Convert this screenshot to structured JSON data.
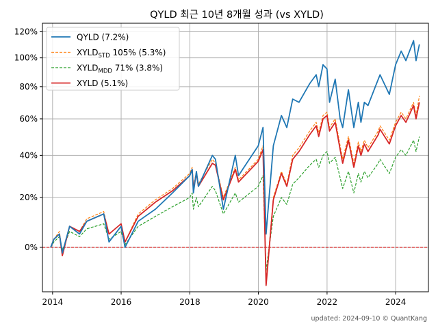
{
  "chart_data": {
    "type": "line",
    "title": "QYLD 최근 10년 8개월 성과 (vs XYLD)",
    "footer": "updated: 2024-09-10 © QuantKang",
    "xlabel": "",
    "ylabel": "",
    "x_ticks": [
      "2014",
      "2016",
      "2018",
      "2020",
      "2022",
      "2024"
    ],
    "y_ticks": [
      "0%",
      "20%",
      "40%",
      "60%",
      "80%",
      "100%",
      "120%"
    ],
    "y_scale": "log(1+r)",
    "ylim": [
      -0.15,
      1.27
    ],
    "xlim": [
      "2013-09-15",
      "2024-12-15"
    ],
    "grid": true,
    "legend_position": "top-left",
    "reference_line": {
      "y": 0,
      "color": "#d62728",
      "style": "dashed"
    },
    "series": [
      {
        "name": "QYLD (7.2%)",
        "legend_base": "QYLD",
        "legend_sub": "",
        "legend_rest": " (7.2%)",
        "color": "#1f77b4",
        "style": "solid",
        "points": [
          [
            "2013-12-12",
            0.0
          ],
          [
            "2014-01-15",
            0.03
          ],
          [
            "2014-03-15",
            0.05
          ],
          [
            "2014-04-15",
            -0.02
          ],
          [
            "2014-07-01",
            0.08
          ],
          [
            "2014-10-15",
            0.05
          ],
          [
            "2014-12-31",
            0.1
          ],
          [
            "2015-06-30",
            0.13
          ],
          [
            "2015-08-25",
            0.02
          ],
          [
            "2015-12-31",
            0.08
          ],
          [
            "2016-02-11",
            0.0
          ],
          [
            "2016-06-30",
            0.1
          ],
          [
            "2016-12-31",
            0.15
          ],
          [
            "2017-06-30",
            0.22
          ],
          [
            "2017-12-31",
            0.3
          ],
          [
            "2018-01-26",
            0.33
          ],
          [
            "2018-02-08",
            0.22
          ],
          [
            "2018-03-12",
            0.32
          ],
          [
            "2018-04-02",
            0.25
          ],
          [
            "2018-08-29",
            0.4
          ],
          [
            "2018-10-01",
            0.38
          ],
          [
            "2018-12-24",
            0.15
          ],
          [
            "2019-04-30",
            0.4
          ],
          [
            "2019-06-03",
            0.3
          ],
          [
            "2019-12-31",
            0.45
          ],
          [
            "2020-02-19",
            0.55
          ],
          [
            "2020-03-23",
            0.05
          ],
          [
            "2020-06-08",
            0.45
          ],
          [
            "2020-09-02",
            0.62
          ],
          [
            "2020-10-30",
            0.55
          ],
          [
            "2020-12-31",
            0.72
          ],
          [
            "2021-03-08",
            0.7
          ],
          [
            "2021-06-30",
            0.82
          ],
          [
            "2021-09-07",
            0.88
          ],
          [
            "2021-10-04",
            0.8
          ],
          [
            "2021-11-19",
            0.95
          ],
          [
            "2021-12-31",
            0.92
          ],
          [
            "2022-01-27",
            0.7
          ],
          [
            "2022-03-29",
            0.85
          ],
          [
            "2022-05-20",
            0.6
          ],
          [
            "2022-06-16",
            0.55
          ],
          [
            "2022-08-16",
            0.78
          ],
          [
            "2022-10-13",
            0.55
          ],
          [
            "2022-11-30",
            0.7
          ],
          [
            "2022-12-28",
            0.58
          ],
          [
            "2023-02-02",
            0.7
          ],
          [
            "2023-03-13",
            0.68
          ],
          [
            "2023-06-30",
            0.85
          ],
          [
            "2023-07-19",
            0.88
          ],
          [
            "2023-10-26",
            0.75
          ],
          [
            "2023-12-31",
            0.95
          ],
          [
            "2024-02-29",
            1.05
          ],
          [
            "2024-04-19",
            0.98
          ],
          [
            "2024-07-10",
            1.13
          ],
          [
            "2024-08-05",
            0.98
          ],
          [
            "2024-09-10",
            1.1
          ]
        ]
      },
      {
        "name": "XYLD STD 105% (5.3%)",
        "legend_base": "XYLD",
        "legend_sub": "STD",
        "legend_rest": " 105% (5.3%)",
        "color": "#ff7f0e",
        "style": "dashed",
        "points": [
          [
            "2013-12-12",
            0.0
          ],
          [
            "2014-01-15",
            0.03
          ],
          [
            "2014-03-15",
            0.06
          ],
          [
            "2014-04-15",
            -0.02
          ],
          [
            "2014-07-01",
            0.08
          ],
          [
            "2014-10-15",
            0.06
          ],
          [
            "2014-12-31",
            0.11
          ],
          [
            "2015-06-30",
            0.14
          ],
          [
            "2015-08-25",
            0.05
          ],
          [
            "2015-12-31",
            0.09
          ],
          [
            "2016-02-11",
            0.02
          ],
          [
            "2016-06-30",
            0.13
          ],
          [
            "2016-12-31",
            0.19
          ],
          [
            "2017-06-30",
            0.24
          ],
          [
            "2017-12-31",
            0.31
          ],
          [
            "2018-01-26",
            0.34
          ],
          [
            "2018-02-08",
            0.25
          ],
          [
            "2018-03-12",
            0.32
          ],
          [
            "2018-04-02",
            0.26
          ],
          [
            "2018-08-29",
            0.38
          ],
          [
            "2018-10-01",
            0.36
          ],
          [
            "2018-12-24",
            0.2
          ],
          [
            "2019-04-30",
            0.34
          ],
          [
            "2019-06-03",
            0.28
          ],
          [
            "2019-12-31",
            0.38
          ],
          [
            "2020-02-19",
            0.45
          ],
          [
            "2020-03-23",
            -0.12
          ],
          [
            "2020-06-08",
            0.2
          ],
          [
            "2020-09-02",
            0.32
          ],
          [
            "2020-10-30",
            0.26
          ],
          [
            "2020-12-31",
            0.4
          ],
          [
            "2021-03-08",
            0.44
          ],
          [
            "2021-06-30",
            0.53
          ],
          [
            "2021-09-07",
            0.58
          ],
          [
            "2021-10-04",
            0.52
          ],
          [
            "2021-11-19",
            0.62
          ],
          [
            "2021-12-31",
            0.64
          ],
          [
            "2022-01-27",
            0.55
          ],
          [
            "2022-03-29",
            0.6
          ],
          [
            "2022-05-20",
            0.45
          ],
          [
            "2022-06-16",
            0.38
          ],
          [
            "2022-08-16",
            0.5
          ],
          [
            "2022-10-13",
            0.36
          ],
          [
            "2022-11-30",
            0.47
          ],
          [
            "2022-12-28",
            0.42
          ],
          [
            "2023-02-02",
            0.48
          ],
          [
            "2023-03-13",
            0.44
          ],
          [
            "2023-06-30",
            0.53
          ],
          [
            "2023-07-19",
            0.56
          ],
          [
            "2023-10-26",
            0.48
          ],
          [
            "2023-12-31",
            0.58
          ],
          [
            "2024-02-29",
            0.64
          ],
          [
            "2024-04-19",
            0.6
          ],
          [
            "2024-07-10",
            0.7
          ],
          [
            "2024-08-05",
            0.62
          ],
          [
            "2024-09-10",
            0.74
          ]
        ]
      },
      {
        "name": "XYLD MDD 71% (3.8%)",
        "legend_base": "XYLD",
        "legend_sub": "MDD",
        "legend_rest": " 71% (3.8%)",
        "color": "#2ca02c",
        "style": "dashed",
        "points": [
          [
            "2013-12-12",
            0.0
          ],
          [
            "2014-01-15",
            0.02
          ],
          [
            "2014-03-15",
            0.04
          ],
          [
            "2014-04-15",
            -0.01
          ],
          [
            "2014-07-01",
            0.06
          ],
          [
            "2014-10-15",
            0.04
          ],
          [
            "2014-12-31",
            0.07
          ],
          [
            "2015-06-30",
            0.09
          ],
          [
            "2015-08-25",
            0.03
          ],
          [
            "2015-12-31",
            0.06
          ],
          [
            "2016-02-11",
            0.01
          ],
          [
            "2016-06-30",
            0.08
          ],
          [
            "2016-12-31",
            0.12
          ],
          [
            "2017-06-30",
            0.16
          ],
          [
            "2017-12-31",
            0.2
          ],
          [
            "2018-01-26",
            0.22
          ],
          [
            "2018-02-08",
            0.15
          ],
          [
            "2018-03-12",
            0.2
          ],
          [
            "2018-04-02",
            0.16
          ],
          [
            "2018-08-29",
            0.25
          ],
          [
            "2018-10-01",
            0.23
          ],
          [
            "2018-12-24",
            0.13
          ],
          [
            "2019-04-30",
            0.22
          ],
          [
            "2019-06-03",
            0.18
          ],
          [
            "2019-12-31",
            0.25
          ],
          [
            "2020-02-19",
            0.3
          ],
          [
            "2020-03-23",
            -0.08
          ],
          [
            "2020-06-08",
            0.12
          ],
          [
            "2020-09-02",
            0.2
          ],
          [
            "2020-10-30",
            0.17
          ],
          [
            "2020-12-31",
            0.26
          ],
          [
            "2021-03-08",
            0.29
          ],
          [
            "2021-06-30",
            0.35
          ],
          [
            "2021-09-07",
            0.38
          ],
          [
            "2021-10-04",
            0.34
          ],
          [
            "2021-11-19",
            0.4
          ],
          [
            "2021-12-31",
            0.42
          ],
          [
            "2022-01-27",
            0.36
          ],
          [
            "2022-03-29",
            0.39
          ],
          [
            "2022-05-20",
            0.29
          ],
          [
            "2022-06-16",
            0.24
          ],
          [
            "2022-08-16",
            0.32
          ],
          [
            "2022-10-13",
            0.22
          ],
          [
            "2022-11-30",
            0.31
          ],
          [
            "2022-12-28",
            0.27
          ],
          [
            "2023-02-02",
            0.32
          ],
          [
            "2023-03-13",
            0.29
          ],
          [
            "2023-06-30",
            0.36
          ],
          [
            "2023-07-19",
            0.38
          ],
          [
            "2023-10-26",
            0.31
          ],
          [
            "2023-12-31",
            0.39
          ],
          [
            "2024-02-29",
            0.43
          ],
          [
            "2024-04-19",
            0.4
          ],
          [
            "2024-07-10",
            0.48
          ],
          [
            "2024-08-05",
            0.42
          ],
          [
            "2024-09-10",
            0.5
          ]
        ]
      },
      {
        "name": "XYLD (5.1%)",
        "legend_base": "XYLD",
        "legend_sub": "",
        "legend_rest": " (5.1%)",
        "color": "#d62728",
        "style": "solid",
        "points": [
          [
            "2013-12-12",
            0.0
          ],
          [
            "2014-01-15",
            0.03
          ],
          [
            "2014-03-15",
            0.05
          ],
          [
            "2014-04-15",
            -0.03
          ],
          [
            "2014-07-01",
            0.08
          ],
          [
            "2014-10-15",
            0.06
          ],
          [
            "2014-12-31",
            0.1
          ],
          [
            "2015-06-30",
            0.13
          ],
          [
            "2015-08-25",
            0.05
          ],
          [
            "2015-12-31",
            0.09
          ],
          [
            "2016-02-11",
            0.02
          ],
          [
            "2016-06-30",
            0.12
          ],
          [
            "2016-12-31",
            0.18
          ],
          [
            "2017-06-30",
            0.23
          ],
          [
            "2017-12-31",
            0.3
          ],
          [
            "2018-01-26",
            0.33
          ],
          [
            "2018-02-08",
            0.24
          ],
          [
            "2018-03-12",
            0.31
          ],
          [
            "2018-04-02",
            0.25
          ],
          [
            "2018-08-29",
            0.36
          ],
          [
            "2018-10-01",
            0.35
          ],
          [
            "2018-12-24",
            0.19
          ],
          [
            "2019-04-30",
            0.33
          ],
          [
            "2019-06-03",
            0.27
          ],
          [
            "2019-12-31",
            0.37
          ],
          [
            "2020-02-19",
            0.43
          ],
          [
            "2020-03-23",
            -0.13
          ],
          [
            "2020-06-08",
            0.19
          ],
          [
            "2020-09-02",
            0.31
          ],
          [
            "2020-10-30",
            0.25
          ],
          [
            "2020-12-31",
            0.38
          ],
          [
            "2021-03-08",
            0.42
          ],
          [
            "2021-06-30",
            0.51
          ],
          [
            "2021-09-07",
            0.56
          ],
          [
            "2021-10-04",
            0.5
          ],
          [
            "2021-11-19",
            0.6
          ],
          [
            "2021-12-31",
            0.62
          ],
          [
            "2022-01-27",
            0.53
          ],
          [
            "2022-03-29",
            0.58
          ],
          [
            "2022-05-20",
            0.43
          ],
          [
            "2022-06-16",
            0.36
          ],
          [
            "2022-08-16",
            0.48
          ],
          [
            "2022-10-13",
            0.34
          ],
          [
            "2022-11-30",
            0.45
          ],
          [
            "2022-12-28",
            0.4
          ],
          [
            "2023-02-02",
            0.46
          ],
          [
            "2023-03-13",
            0.42
          ],
          [
            "2023-06-30",
            0.51
          ],
          [
            "2023-07-19",
            0.54
          ],
          [
            "2023-10-26",
            0.46
          ],
          [
            "2023-12-31",
            0.56
          ],
          [
            "2024-02-29",
            0.62
          ],
          [
            "2024-04-19",
            0.58
          ],
          [
            "2024-07-10",
            0.68
          ],
          [
            "2024-08-05",
            0.6
          ],
          [
            "2024-09-10",
            0.7
          ]
        ]
      }
    ]
  }
}
